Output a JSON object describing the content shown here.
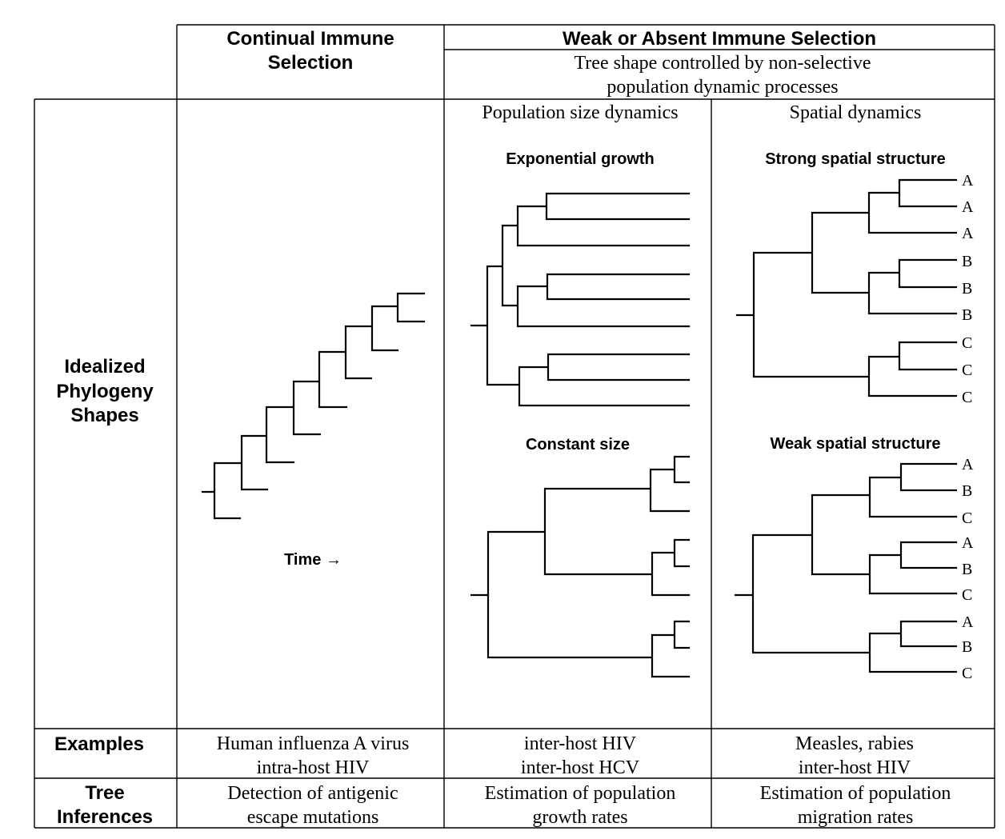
{
  "header": {
    "col1": [
      "Continual Immune",
      "Selection"
    ],
    "col2": "Weak or Absent Immune Selection",
    "col2_sub": [
      "Tree shape controlled by non-selective",
      "population dynamic processes"
    ],
    "col2a": "Population size dynamics",
    "col2b": "Spatial dynamics"
  },
  "rows": {
    "shapes": [
      "Idealized",
      "Phylogeny",
      "Shapes"
    ],
    "examples": "Examples",
    "inferences": [
      "Tree",
      "Inferences"
    ]
  },
  "panels": {
    "time_label": "Time →",
    "exponential": "Exponential growth",
    "constant": "Constant size",
    "strong_spatial": "Strong spatial structure",
    "weak_spatial": "Weak spatial structure"
  },
  "strong_tip_labels": [
    "A",
    "A",
    "A",
    "B",
    "B",
    "B",
    "C",
    "C",
    "C"
  ],
  "weak_tip_labels": [
    "A",
    "B",
    "C",
    "A",
    "B",
    "C",
    "A",
    "B",
    "C"
  ],
  "examples": {
    "col1": [
      "Human influenza A virus",
      "intra-host HIV"
    ],
    "col2": [
      "inter-host HIV",
      "inter-host HCV"
    ],
    "col3": [
      "Measles, rabies",
      "inter-host HIV"
    ]
  },
  "inferences": {
    "col1": [
      "Detection of antigenic",
      "escape mutations"
    ],
    "col2": [
      "Estimation of population",
      "growth rates"
    ],
    "col3": [
      "Estimation of population",
      "migration rates"
    ]
  }
}
